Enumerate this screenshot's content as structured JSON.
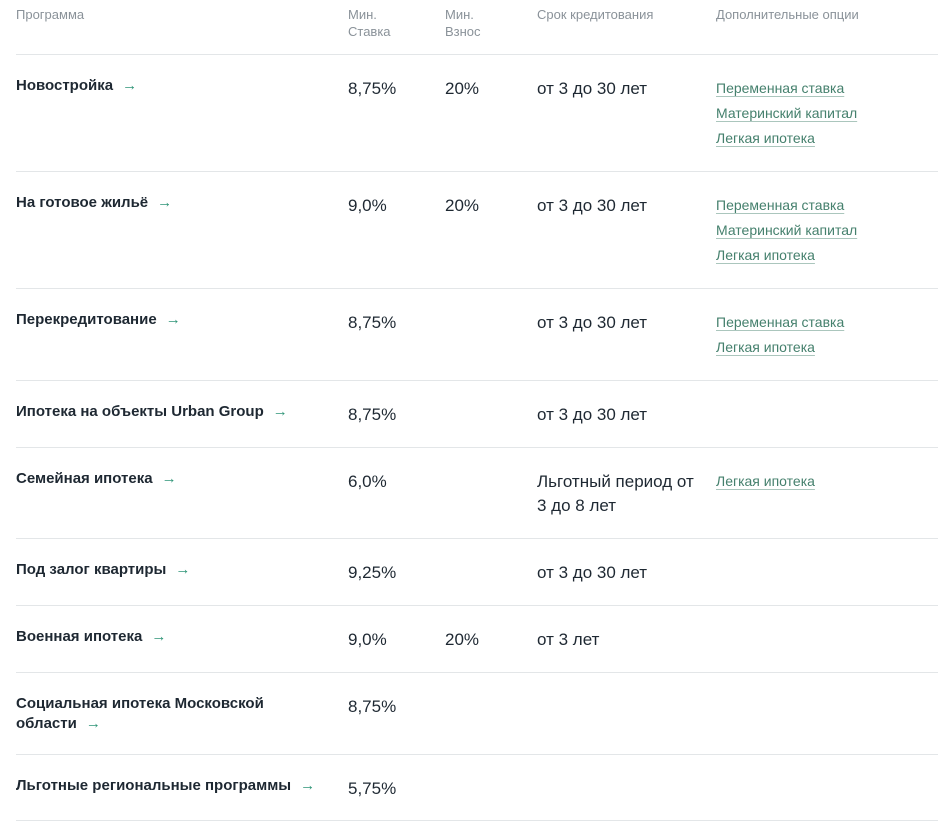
{
  "colors": {
    "accent_green": "#2f9577",
    "link_green": "#45806d",
    "text_dark": "#1e2832",
    "header_gray": "#8a9299",
    "divider": "#e3e6e8"
  },
  "table": {
    "headers": [
      "Программа",
      "Мин. Ставка",
      "Мин. Взнос",
      "Срок кредитования",
      "Дополнительные опции"
    ],
    "arrow_glyph": "→",
    "rows": [
      {
        "program": "Новостройка",
        "rate": "8,75%",
        "deposit": "20%",
        "term": "от 3 до 30 лет",
        "options": [
          "Переменная ставка",
          "Материнский капитал",
          "Легкая ипотека"
        ]
      },
      {
        "program": "На готовое жильё",
        "rate": "9,0%",
        "deposit": "20%",
        "term": "от 3 до 30 лет",
        "options": [
          "Переменная ставка",
          "Материнский капитал",
          "Легкая ипотека"
        ]
      },
      {
        "program": "Перекредитование",
        "rate": "8,75%",
        "deposit": "",
        "term": "от 3 до 30 лет",
        "options": [
          "Переменная ставка",
          "Легкая ипотека"
        ]
      },
      {
        "program": "Ипотека на объекты Urban Group",
        "rate": "8,75%",
        "deposit": "",
        "term": "от 3 до 30 лет",
        "options": []
      },
      {
        "program": "Семейная ипотека",
        "rate": "6,0%",
        "deposit": "",
        "term": "Льготный период от 3 до 8 лет",
        "options": [
          "Легкая ипотека"
        ]
      },
      {
        "program": "Под залог квартиры",
        "rate": "9,25%",
        "deposit": "",
        "term": "от 3 до 30 лет",
        "options": []
      },
      {
        "program": "Военная ипотека",
        "rate": "9,0%",
        "deposit": "20%",
        "term": "от 3 лет",
        "options": []
      },
      {
        "program": "Социальная ипотека Московской области",
        "rate": "8,75%",
        "deposit": "",
        "term": "",
        "options": []
      },
      {
        "program": "Льготные региональные программы",
        "rate": "5,75%",
        "deposit": "",
        "term": "",
        "options": []
      }
    ]
  }
}
